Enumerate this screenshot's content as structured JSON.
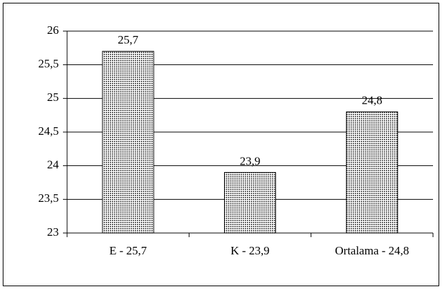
{
  "chart_data": {
    "type": "bar",
    "categories": [
      "E - 25,7",
      "K - 23,9",
      "Ortalama - 24,8"
    ],
    "values": [
      25.7,
      23.9,
      24.8
    ],
    "value_labels": [
      "25,7",
      "23,9",
      "24,8"
    ],
    "color": "#000000",
    "ylim": [
      23,
      26
    ],
    "yticks": [
      23,
      {
        "value": 23.5,
        "label": "23,5"
      },
      24,
      {
        "value": 24.5,
        "label": "24,5"
      },
      25,
      {
        "value": 25.5,
        "label": "25,5"
      },
      26
    ],
    "grid": true
  }
}
